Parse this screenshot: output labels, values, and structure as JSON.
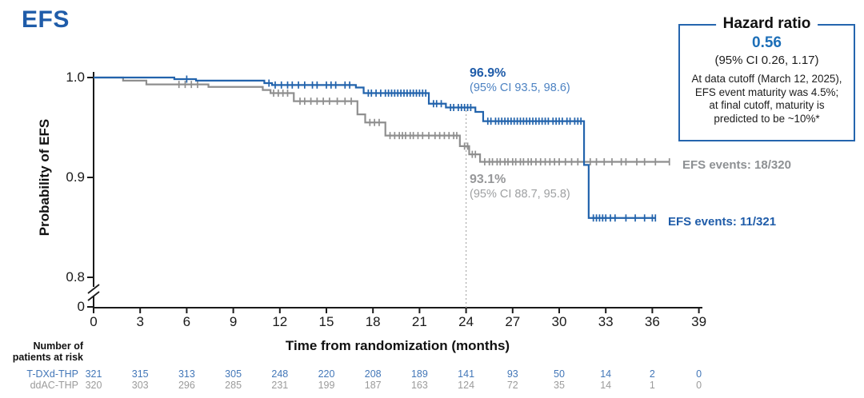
{
  "title": "EFS",
  "colors": {
    "brand_blue": "#1F5CA9",
    "bright_blue": "#1D6FB8",
    "curve_blue": "#2263AC",
    "curve_gray": "#8F8F8F",
    "table_blue": "#4377B8",
    "table_gray": "#9B9B9B",
    "axis_black": "#1a1a1a",
    "landmark_gray": "#ABABAB",
    "box_border_blue": "#2565AE"
  },
  "y_axis": {
    "label": "Probability of EFS",
    "ticks": [
      "1.0",
      "0.9",
      "0.8",
      "0"
    ],
    "has_break": true
  },
  "x_axis": {
    "label": "Time from randomization (months)"
  },
  "hazard_box": {
    "title": "Hazard ratio",
    "value": "0.56",
    "ci": "(95% CI 0.26, 1.17)",
    "note_lines": [
      "At data cutoff (March 12, 2025),",
      "EFS event maturity was 4.5%;",
      "at final cutoff, maturity is",
      "predicted to be ~10%*"
    ]
  },
  "annotations": {
    "tdxd": {
      "value": "96.9%",
      "ci": "(95% CI 93.5, 98.6)"
    },
    "ddac": {
      "value": "93.1%",
      "ci": "(95% CI 88.7, 95.8)"
    },
    "tdxd_events": "EFS events: 11/321",
    "ddac_events": "EFS events: 18/320"
  },
  "at_risk": {
    "header_line1": "Number of",
    "header_line2": "patients at risk",
    "rows": [
      {
        "key": "tdxd",
        "label": "T-DXd-THP",
        "values": [
          321,
          315,
          313,
          305,
          248,
          220,
          208,
          189,
          141,
          93,
          50,
          14,
          2,
          0
        ]
      },
      {
        "key": "ddac",
        "label": "ddAC-THP",
        "values": [
          320,
          303,
          296,
          285,
          231,
          199,
          187,
          163,
          124,
          72,
          35,
          14,
          1,
          0
        ]
      }
    ]
  },
  "chart_data": {
    "type": "line",
    "subtype": "kaplan-meier-step",
    "title": "EFS",
    "xlabel": "Time from randomization (months)",
    "ylabel": "Probability of EFS",
    "x_ticks": [
      0,
      3,
      6,
      9,
      12,
      15,
      18,
      21,
      24,
      27,
      30,
      33,
      36,
      39
    ],
    "xlim": [
      0,
      39
    ],
    "y_display_ticks": [
      1.0,
      0.9,
      0.8,
      0
    ],
    "ylim_display": [
      0.8,
      1.0
    ],
    "axis_break_below": 0.8,
    "grid": false,
    "legend_position": "inline-right",
    "landmark": {
      "month": 24,
      "tdxd_value_pct": 96.9,
      "ddac_value_pct": 93.1
    },
    "series": [
      {
        "name": "ddAC-THP",
        "color": "#8F8F8F",
        "events": "18/320",
        "end_month": 37.1,
        "steps": [
          [
            0,
            1.0
          ],
          [
            1.9,
            0.9969
          ],
          [
            3.4,
            0.9931
          ],
          [
            7.4,
            0.9906
          ],
          [
            10.9,
            0.9875
          ],
          [
            11.4,
            0.9844
          ],
          [
            12.9,
            0.9763
          ],
          [
            17.0,
            0.9631
          ],
          [
            17.5,
            0.955
          ],
          [
            18.8,
            0.9419
          ],
          [
            23.6,
            0.9313
          ],
          [
            24.2,
            0.9231
          ],
          [
            24.9,
            0.9156
          ]
        ],
        "censor_ticks": [
          5.5,
          5.9,
          6.3,
          6.7,
          11.6,
          11.9,
          12.2,
          12.5,
          13.3,
          13.6,
          14.0,
          14.4,
          14.8,
          15.2,
          15.7,
          16.2,
          16.6,
          17.8,
          18.1,
          18.4,
          19.1,
          19.4,
          19.7,
          19.9,
          20.1,
          20.4,
          20.6,
          20.9,
          21.2,
          21.6,
          22.0,
          22.3,
          22.6,
          22.9,
          23.2,
          23.4,
          23.9,
          24.1,
          24.4,
          24.6,
          25.2,
          25.5,
          25.7,
          26.0,
          26.2,
          26.5,
          26.7,
          27.0,
          27.2,
          27.5,
          27.7,
          28.0,
          28.2,
          28.5,
          28.8,
          29.1,
          29.4,
          29.7,
          30.0,
          30.4,
          30.8,
          31.2,
          31.6,
          32.0,
          32.4,
          32.9,
          33.4,
          34.0,
          34.3,
          35.0,
          35.5,
          36.2,
          37.1
        ]
      },
      {
        "name": "T-DXd-THP",
        "color": "#2263AC",
        "events": "11/321",
        "end_month": 36.2,
        "steps": [
          [
            0,
            1.0
          ],
          [
            5.2,
            0.9984
          ],
          [
            6.6,
            0.9969
          ],
          [
            11.0,
            0.9944
          ],
          [
            11.5,
            0.9925
          ],
          [
            16.9,
            0.99
          ],
          [
            17.4,
            0.9844
          ],
          [
            21.6,
            0.9738
          ],
          [
            22.7,
            0.97
          ],
          [
            24.6,
            0.9656
          ],
          [
            25.1,
            0.9563
          ],
          [
            31.6,
            0.9125
          ],
          [
            31.9,
            0.8594
          ]
        ],
        "censor_ticks": [
          6.0,
          11.3,
          11.7,
          12.1,
          12.5,
          12.8,
          13.2,
          13.6,
          14.1,
          14.4,
          15.0,
          15.3,
          15.6,
          16.2,
          16.5,
          17.7,
          17.9,
          18.2,
          18.5,
          18.8,
          19.0,
          19.2,
          19.4,
          19.6,
          19.8,
          20.0,
          20.2,
          20.4,
          20.6,
          20.8,
          21.0,
          21.2,
          21.4,
          21.9,
          22.1,
          22.4,
          23.0,
          23.2,
          23.5,
          23.7,
          23.9,
          24.1,
          24.3,
          25.4,
          25.6,
          25.9,
          26.1,
          26.3,
          26.5,
          26.7,
          26.9,
          27.1,
          27.3,
          27.5,
          27.7,
          27.9,
          28.1,
          28.3,
          28.5,
          28.7,
          28.9,
          29.1,
          29.3,
          29.6,
          29.8,
          30.0,
          30.2,
          30.5,
          30.7,
          31.0,
          31.2,
          31.4,
          32.2,
          32.4,
          32.6,
          32.8,
          33.0,
          33.3,
          33.6,
          34.3,
          34.9,
          35.5,
          36.0,
          36.2
        ]
      }
    ]
  }
}
